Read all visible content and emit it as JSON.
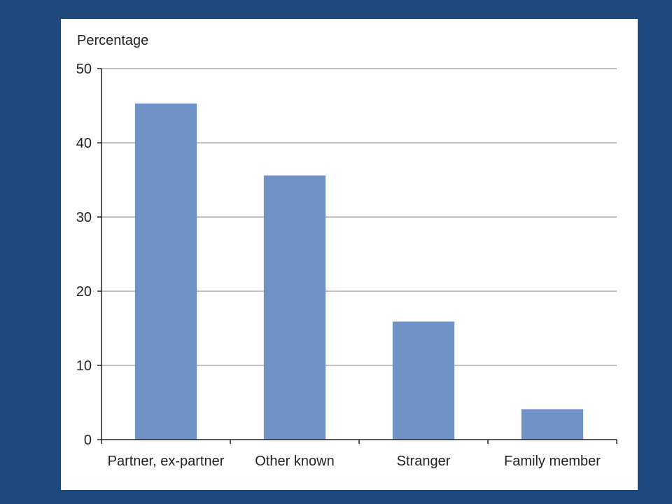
{
  "chart_data": {
    "type": "bar",
    "title": "",
    "xlabel": "",
    "ylabel": "Percentage",
    "categories": [
      "Partner, ex-partner",
      "Other known",
      "Stranger",
      "Family member"
    ],
    "values": [
      45.3,
      35.6,
      15.9,
      4.1
    ],
    "ylim": [
      0,
      50
    ],
    "yticks": [
      0,
      10,
      20,
      30,
      40,
      50
    ],
    "grid": true,
    "legend": "none",
    "colors": {
      "bar": "#6f93c6",
      "grid": "#c0c0c0",
      "axis": "#222222",
      "page_background": "#1f497d",
      "panel_background": "#ffffff"
    }
  }
}
